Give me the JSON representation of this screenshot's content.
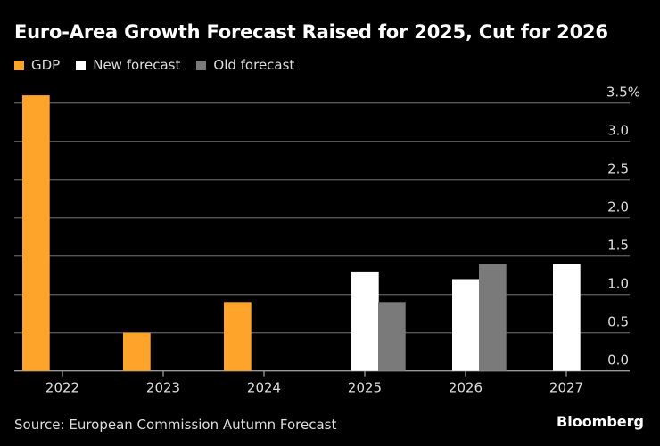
{
  "chart_data": {
    "type": "bar",
    "title": "Euro-Area Growth Forecast Raised for 2025, Cut for 2026",
    "categories": [
      "2022",
      "2023",
      "2024",
      "2025",
      "2026",
      "2027"
    ],
    "series": [
      {
        "name": "GDP",
        "color": "#ffa42a",
        "values": [
          3.6,
          0.5,
          0.9,
          null,
          null,
          null
        ]
      },
      {
        "name": "New forecast",
        "color": "#ffffff",
        "values": [
          null,
          null,
          null,
          1.3,
          1.2,
          1.4
        ]
      },
      {
        "name": "Old forecast",
        "color": "#7a7a7a",
        "values": [
          null,
          null,
          null,
          0.9,
          1.4,
          null
        ]
      }
    ],
    "yticks": [
      "0.0",
      "0.5",
      "1.0",
      "1.5",
      "2.0",
      "2.5",
      "3.0",
      "3.5%"
    ],
    "ylim": [
      0,
      3.5
    ],
    "yaxis_position": "right",
    "grid": true,
    "legend_position": "top-left",
    "xlabel": "",
    "ylabel": ""
  },
  "source": "Source: European Commission Autumn Forecast",
  "brand": "Bloomberg"
}
